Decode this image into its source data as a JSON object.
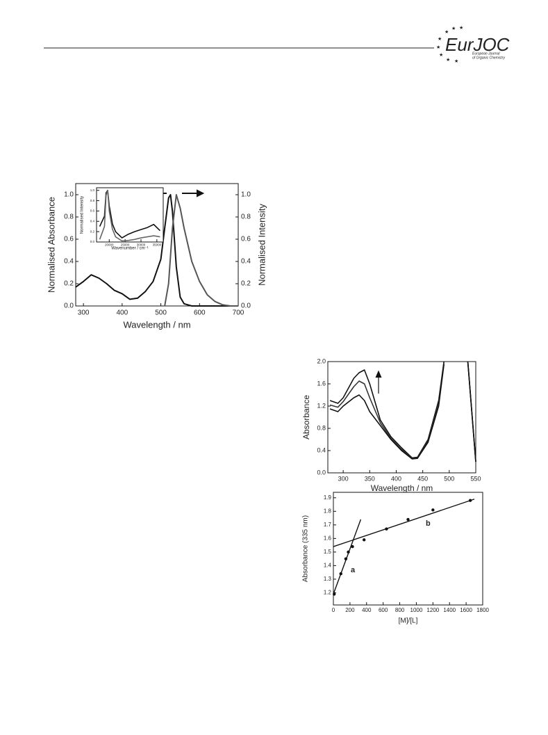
{
  "header": {
    "logo": "EurJOC",
    "journal_line1": "European Journal",
    "journal_line2": "of Organic Chemistry"
  },
  "chart_data": [
    {
      "type": "line",
      "xlabel": "Wavelength / nm",
      "ylabel": "Normalised Absorbance",
      "y2label": "Normalised Intensity",
      "xlim": [
        280,
        700
      ],
      "xticks": [
        300,
        400,
        500,
        600,
        700
      ],
      "ylim": [
        0,
        1.1
      ],
      "yticks": [
        {
          "value": 0,
          "label": "0.0"
        },
        0.2,
        0.4,
        0.6,
        0.8,
        {
          "value": 1,
          "label": "1.0"
        }
      ],
      "y2lim": [
        0,
        1.1
      ],
      "y2ticks": [
        {
          "value": 0,
          "label": "0.0"
        },
        0.2,
        0.4,
        0.6,
        0.8,
        {
          "value": 1,
          "label": "1.0"
        }
      ],
      "series": [
        {
          "color": "#111111",
          "x": [
            280,
            300,
            320,
            340,
            360,
            380,
            400,
            420,
            440,
            460,
            480,
            500,
            510,
            520,
            525,
            530,
            540,
            550,
            560,
            580,
            600,
            700
          ],
          "values": [
            0.17,
            0.22,
            0.28,
            0.25,
            0.2,
            0.14,
            0.11,
            0.06,
            0.07,
            0.13,
            0.22,
            0.42,
            0.7,
            0.97,
            1.0,
            0.85,
            0.35,
            0.08,
            0.02,
            0,
            0,
            0
          ]
        },
        {
          "color": "#555555",
          "axis": "y2",
          "x": [
            510,
            520,
            530,
            540,
            550,
            560,
            580,
            600,
            620,
            640,
            660,
            680,
            700
          ],
          "values": [
            0,
            0.2,
            0.7,
            1.0,
            0.88,
            0.7,
            0.4,
            0.22,
            0.1,
            0.04,
            0.01,
            0,
            0
          ]
        }
      ]
    },
    {
      "type": "line",
      "xlabel": "Wavenumber / cm⁻¹",
      "ylabel": "Normalised Intensity",
      "xlim": [
        16000,
        37000
      ],
      "xticks": [
        20000,
        25000,
        30000,
        35000
      ],
      "ylim": [
        0,
        1.05
      ],
      "yticks": [
        {
          "value": 0,
          "label": "0.0"
        },
        0.2,
        0.4,
        0.6,
        0.8,
        {
          "value": 1,
          "label": "1.0"
        }
      ],
      "series": [
        {
          "color": "#111111",
          "x": [
            17000,
            18500,
            19000,
            19500,
            20000,
            21000,
            22000,
            24000,
            26000,
            28000,
            30000,
            32000,
            34000,
            36000
          ],
          "values": [
            0.3,
            0.5,
            0.95,
            1.0,
            0.7,
            0.35,
            0.2,
            0.08,
            0.15,
            0.2,
            0.24,
            0.28,
            0.34,
            0.22
          ]
        },
        {
          "color": "#666666",
          "x": [
            17000,
            18500,
            19000,
            19500,
            20000,
            21000,
            22000,
            24000,
            26000,
            28000,
            30000,
            32000,
            34000,
            36000
          ],
          "values": [
            0.05,
            0.3,
            0.9,
            1.0,
            0.6,
            0.25,
            0.1,
            0.02,
            0.03,
            0.05,
            0.08,
            0.1,
            0.12,
            0.1
          ]
        }
      ]
    },
    {
      "type": "line",
      "xlabel": "Wavelength / nm",
      "ylabel": "Absorbance",
      "xlim": [
        271,
        550
      ],
      "xticks": [
        300,
        350,
        400,
        450,
        500,
        550
      ],
      "ylim": [
        0,
        2.0
      ],
      "yticks": [
        {
          "value": 0,
          "label": "0.0"
        },
        0.4,
        0.8,
        1.2,
        1.6,
        {
          "value": 2,
          "label": "2.0"
        }
      ],
      "x": [
        275,
        290,
        300,
        320,
        330,
        340,
        350,
        370,
        390,
        410,
        430,
        440,
        460,
        480,
        490,
        510,
        535,
        550
      ],
      "series": [
        {
          "color": "#111111",
          "values": [
            1.3,
            1.25,
            1.35,
            1.7,
            1.8,
            1.85,
            1.6,
            0.95,
            0.65,
            0.45,
            0.27,
            0.28,
            0.6,
            1.3,
            2.0,
            null,
            2.0,
            0.2
          ]
        },
        {
          "color": "#333333",
          "values": [
            1.22,
            1.18,
            1.28,
            1.55,
            1.65,
            1.6,
            1.35,
            0.9,
            0.62,
            0.42,
            0.26,
            0.27,
            0.57,
            1.25,
            1.97,
            null,
            2.0,
            0.2
          ]
        },
        {
          "color": "#111111",
          "values": [
            1.15,
            1.1,
            1.2,
            1.35,
            1.4,
            1.3,
            1.1,
            0.85,
            0.6,
            0.4,
            0.25,
            0.26,
            0.55,
            1.2,
            1.95,
            null,
            2.0,
            0.2
          ]
        }
      ]
    },
    {
      "type": "scatter",
      "xlabel": "[M]/[L]",
      "ylabel": "Absorbance (335 nm)",
      "xlim": [
        0,
        1800
      ],
      "xticks": [
        0,
        200,
        400,
        600,
        800,
        1000,
        1200,
        1400,
        1600,
        1800
      ],
      "ylim": [
        1.11,
        1.94
      ],
      "yticks": [
        1.2,
        1.3,
        1.4,
        1.5,
        1.6,
        1.7,
        1.8,
        1.9
      ],
      "annotations": [
        "a",
        "b"
      ],
      "series": [
        {
          "color": "#111111",
          "style": "points",
          "x": [
            10,
            90,
            150,
            180,
            230,
            370,
            640,
            900,
            1200,
            1650
          ],
          "values": [
            1.19,
            1.34,
            1.45,
            1.5,
            1.54,
            1.59,
            1.67,
            1.74,
            1.81,
            1.88
          ]
        },
        {
          "color": "#111111",
          "style": "line",
          "x": [
            0,
            330
          ],
          "values": [
            1.19,
            1.74
          ]
        },
        {
          "color": "#111111",
          "style": "line",
          "x": [
            0,
            1700
          ],
          "values": [
            1.54,
            1.89
          ]
        }
      ]
    }
  ]
}
